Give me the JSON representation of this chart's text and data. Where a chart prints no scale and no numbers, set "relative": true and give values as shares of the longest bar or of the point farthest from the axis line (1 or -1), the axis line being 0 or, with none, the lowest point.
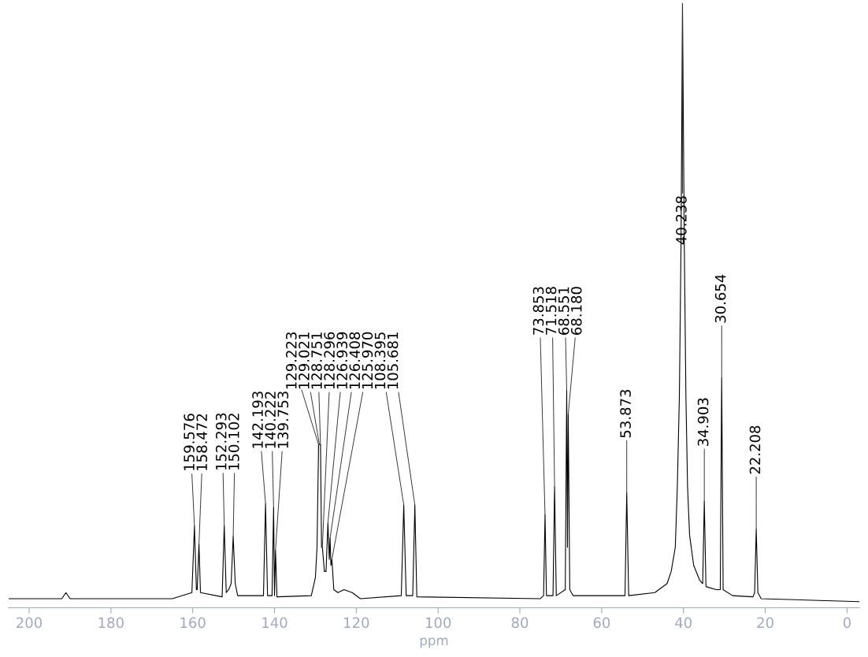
{
  "chart_data": {
    "type": "line",
    "relative": true,
    "xlabel": "ppm",
    "xlim": [
      205,
      -3
    ],
    "xticks": [
      200,
      180,
      160,
      140,
      120,
      100,
      80,
      60,
      40,
      20,
      0
    ],
    "series": [
      {
        "color": "#000000",
        "x": [
          205,
          192,
          191,
          190,
          165,
          160.2,
          159.576,
          159.1,
          158.9,
          158.472,
          158.1,
          152.8,
          152.293,
          151.8,
          151.2,
          150.6,
          150.102,
          149.6,
          149,
          142.7,
          142.193,
          141.7,
          140.6,
          140.222,
          140.0,
          139.753,
          139.4,
          131,
          130,
          129.6,
          129.223,
          129.021,
          128.751,
          128.5,
          128.296,
          127.8,
          127.4,
          126.939,
          126.6,
          126.408,
          126.2,
          125.97,
          125.5,
          124.5,
          123,
          121,
          119,
          109,
          108.395,
          107.8,
          106.2,
          105.681,
          105.2,
          75,
          74.2,
          73.853,
          73.5,
          71.9,
          71.518,
          71.1,
          68.9,
          68.551,
          68.36,
          68.18,
          67.8,
          67,
          54.3,
          53.873,
          53.4,
          47,
          44,
          43,
          42,
          41.5,
          41,
          40.6,
          40.238,
          39.8,
          39.4,
          39,
          38.5,
          37.5,
          36,
          35.3,
          34.903,
          34.5,
          32,
          31,
          30.654,
          30.3,
          28,
          23,
          22.6,
          22.208,
          21.8,
          21,
          -3
        ],
        "values": [
          0.015,
          0.015,
          0.025,
          0.015,
          0.015,
          0.025,
          0.135,
          0.03,
          0.03,
          0.105,
          0.025,
          0.018,
          0.136,
          0.025,
          0.03,
          0.04,
          0.118,
          0.04,
          0.02,
          0.02,
          0.172,
          0.02,
          0.02,
          0.166,
          0.02,
          0.095,
          0.018,
          0.02,
          0.05,
          0.1,
          0.27,
          0.27,
          0.27,
          0.1,
          0.1,
          0.06,
          0.06,
          0.14,
          0.08,
          0.115,
          0.07,
          0.08,
          0.03,
          0.025,
          0.03,
          0.025,
          0.015,
          0.02,
          0.17,
          0.02,
          0.02,
          0.17,
          0.018,
          0.015,
          0.02,
          0.154,
          0.02,
          0.02,
          0.2,
          0.02,
          0.03,
          0.36,
          0.1,
          0.32,
          0.03,
          0.02,
          0.02,
          0.19,
          0.02,
          0.025,
          0.04,
          0.06,
          0.1,
          0.2,
          0.35,
          0.6,
          1.0,
          0.6,
          0.35,
          0.2,
          0.12,
          0.07,
          0.045,
          0.04,
          0.176,
          0.035,
          0.03,
          0.03,
          0.38,
          0.03,
          0.02,
          0.018,
          0.025,
          0.13,
          0.025,
          0.015,
          0.01
        ]
      }
    ],
    "annotations": [
      {
        "text": "159.576",
        "x": 159.576,
        "y": 0.135
      },
      {
        "text": "158.472",
        "x": 158.472,
        "y": 0.105
      },
      {
        "text": "152.293",
        "x": 152.293,
        "y": 0.136
      },
      {
        "text": "150.102",
        "x": 150.102,
        "y": 0.118
      },
      {
        "text": "142.193",
        "x": 142.193,
        "y": 0.172
      },
      {
        "text": "140.222",
        "x": 140.222,
        "y": 0.166
      },
      {
        "text": "139.753",
        "x": 139.753,
        "y": 0.095
      },
      {
        "text": "129.223",
        "x": 129.223,
        "y": 0.27
      },
      {
        "text": "129.021",
        "x": 129.021,
        "y": 0.27
      },
      {
        "text": "128.751",
        "x": 128.751,
        "y": 0.27
      },
      {
        "text": "128.296",
        "x": 128.296,
        "y": 0.1
      },
      {
        "text": "126.939",
        "x": 126.939,
        "y": 0.14
      },
      {
        "text": "126.408",
        "x": 126.408,
        "y": 0.115
      },
      {
        "text": "125.970",
        "x": 125.97,
        "y": 0.08
      },
      {
        "text": "108.395",
        "x": 108.395,
        "y": 0.17
      },
      {
        "text": "105.681",
        "x": 105.681,
        "y": 0.17
      },
      {
        "text": "73.853",
        "x": 73.853,
        "y": 0.154
      },
      {
        "text": "71.518",
        "x": 71.518,
        "y": 0.2
      },
      {
        "text": "68.551",
        "x": 68.551,
        "y": 0.36
      },
      {
        "text": "68.180",
        "x": 68.18,
        "y": 0.32
      },
      {
        "text": "53.873",
        "x": 53.873,
        "y": 0.19
      },
      {
        "text": "40.238",
        "x": 40.238,
        "y": 1.0
      },
      {
        "text": "34.903",
        "x": 34.903,
        "y": 0.176
      },
      {
        "text": "30.654",
        "x": 30.654,
        "y": 0.38
      },
      {
        "text": "22.208",
        "x": 22.208,
        "y": 0.13
      }
    ]
  }
}
